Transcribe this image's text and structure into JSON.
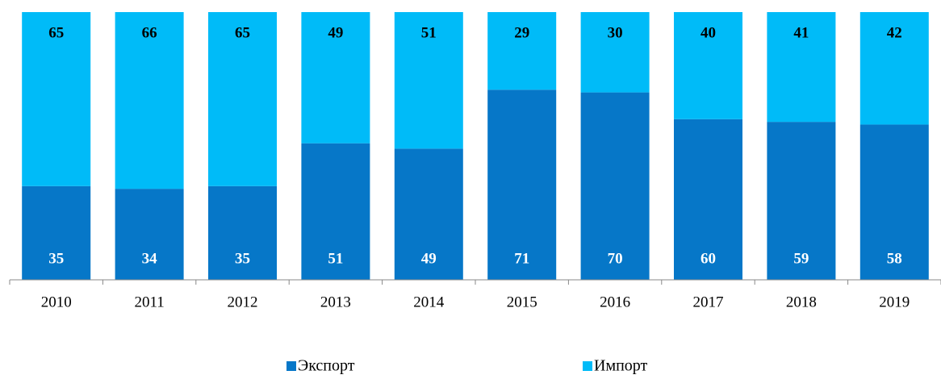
{
  "chart_data": {
    "type": "stacked_bar",
    "categories": [
      "2010",
      "2011",
      "2012",
      "2013",
      "2014",
      "2015",
      "2016",
      "2017",
      "2018",
      "2019"
    ],
    "series": [
      {
        "name": "Экспорт",
        "color": "#0677c8",
        "values": [
          35,
          34,
          35,
          51,
          49,
          71,
          70,
          60,
          59,
          58
        ]
      },
      {
        "name": "Импорт",
        "color": "#00bbf8",
        "values": [
          65,
          66,
          65,
          49,
          51,
          29,
          30,
          40,
          41,
          42
        ]
      }
    ],
    "ylim": [
      0,
      100
    ],
    "legend": "bottom"
  }
}
